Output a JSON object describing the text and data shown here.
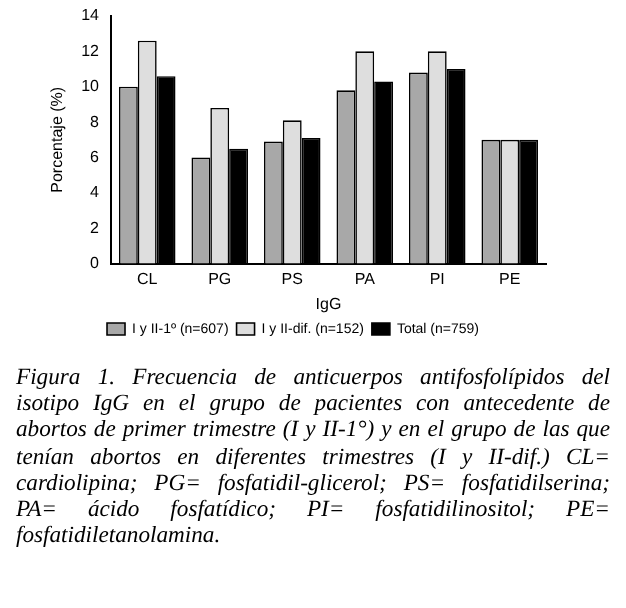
{
  "chart_data": {
    "type": "bar",
    "xlabel": "IgG",
    "ylabel": "Porcentaje (%)",
    "categories": [
      "CL",
      "PG",
      "PS",
      "PA",
      "PI",
      "PE"
    ],
    "series": [
      {
        "name": "I y II-1º (n=607)",
        "color": "#a8a8a8",
        "values": [
          10,
          6,
          6.9,
          9.8,
          10.8,
          7
        ]
      },
      {
        "name": "I y II-dif. (n=152)",
        "color": "#dedede",
        "values": [
          12.6,
          8.8,
          8.1,
          12,
          12,
          7
        ]
      },
      {
        "name": "Total (n=759)",
        "color": "#000000",
        "values": [
          10.6,
          6.5,
          7.1,
          10.3,
          11,
          7
        ]
      }
    ],
    "ylim": [
      0,
      14
    ],
    "yticks": [
      0,
      2,
      4,
      6,
      8,
      10,
      12,
      14
    ],
    "legend": "bottom",
    "annotations": [
      "Figura 1. Frecuencia de anticuerpos antifosfolípidos del isotipo IgG en el grupo de pacientes con antecedente de abortos de primer trimestre (I y II-1°) y en el grupo de las que tenían abortos en diferentes trimestres (I y II-dif.) CL= cardiolipina; PG= fosfatidil-glicerol; PS= fosfatidilserina; PA= ácido fosfatídico; PI= fosfatidilinositol; PE= fosfatidiletanolamina."
    ]
  }
}
